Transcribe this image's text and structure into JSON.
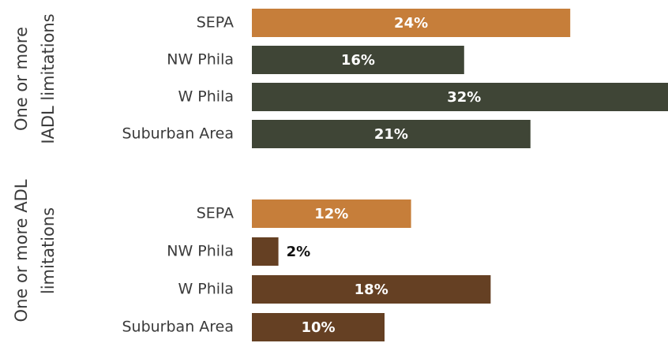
{
  "chart_data": {
    "type": "bar",
    "orientation": "horizontal",
    "groups": [
      {
        "label_lines": [
          "One or more",
          "IADL limitations"
        ],
        "categories": [
          "SEPA",
          "NW Phila",
          "W Phila",
          "Suburban Area"
        ],
        "values": [
          24,
          16,
          32,
          21
        ],
        "value_labels": [
          "24%",
          "16%",
          "32%",
          "21%"
        ],
        "colors": [
          "#c67e3a",
          "#3f4536",
          "#3f4536",
          "#3f4536"
        ]
      },
      {
        "label_lines": [
          "One or more ADL",
          "limitations"
        ],
        "categories": [
          "SEPA",
          "NW Phila",
          "W Phila",
          "Suburban Area"
        ],
        "values": [
          12,
          2,
          18,
          10
        ],
        "value_labels": [
          "12%",
          "2%",
          "18%",
          "10%"
        ],
        "colors": [
          "#c67e3a",
          "#654023",
          "#654023",
          "#654023"
        ]
      }
    ]
  }
}
